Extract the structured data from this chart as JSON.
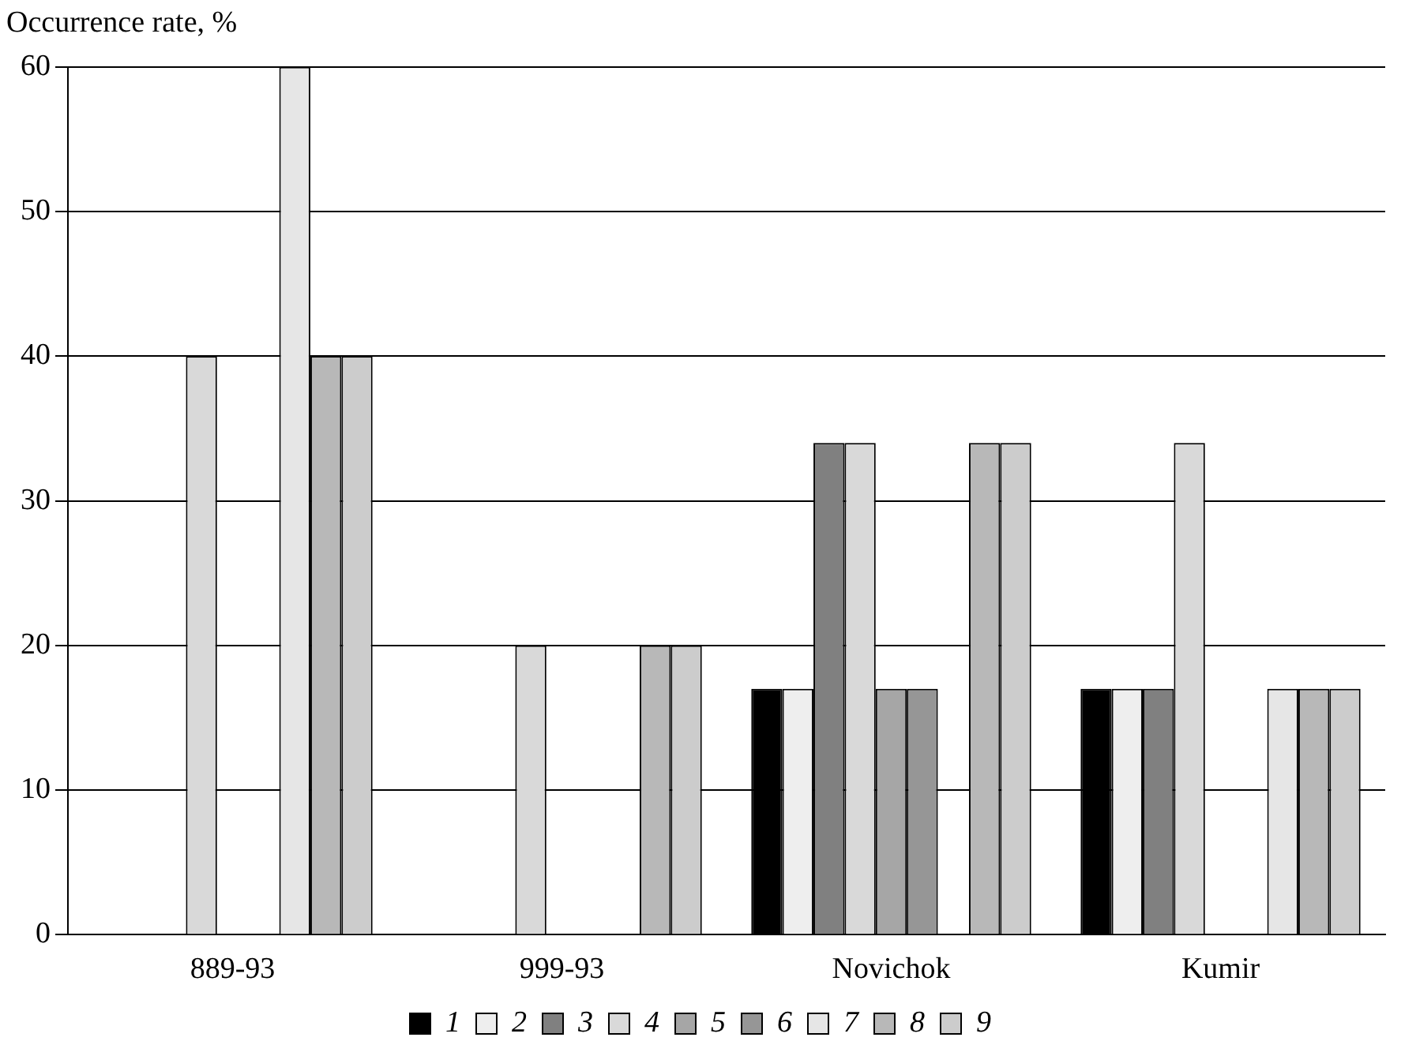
{
  "chart_data": {
    "type": "bar",
    "ylabel": "Occurrence rate, %",
    "categories": [
      "889-93",
      "999-93",
      "Novichok",
      "Kumir"
    ],
    "series": [
      {
        "name": "1",
        "color": "#000000",
        "values": [
          0,
          0,
          17,
          17
        ]
      },
      {
        "name": "2",
        "color": "#eeeeee",
        "values": [
          0,
          0,
          17,
          17
        ]
      },
      {
        "name": "3",
        "color": "#808080",
        "values": [
          0,
          0,
          34,
          17
        ]
      },
      {
        "name": "4",
        "color": "#d9d9d9",
        "values": [
          40,
          20,
          34,
          34
        ]
      },
      {
        "name": "5",
        "color": "#a6a6a6",
        "values": [
          0,
          0,
          17,
          0
        ]
      },
      {
        "name": "6",
        "color": "#969696",
        "values": [
          0,
          0,
          17,
          0
        ]
      },
      {
        "name": "7",
        "color": "#e6e6e6",
        "values": [
          60,
          0,
          0,
          17
        ]
      },
      {
        "name": "8",
        "color": "#b8b8b8",
        "values": [
          40,
          20,
          34,
          17
        ]
      },
      {
        "name": "9",
        "color": "#cccccc",
        "values": [
          40,
          20,
          34,
          17
        ]
      }
    ],
    "ylim": [
      0,
      60
    ],
    "yticks": [
      0,
      10,
      20,
      30,
      40,
      50,
      60
    ],
    "grid": "y",
    "legend": "bottom"
  }
}
